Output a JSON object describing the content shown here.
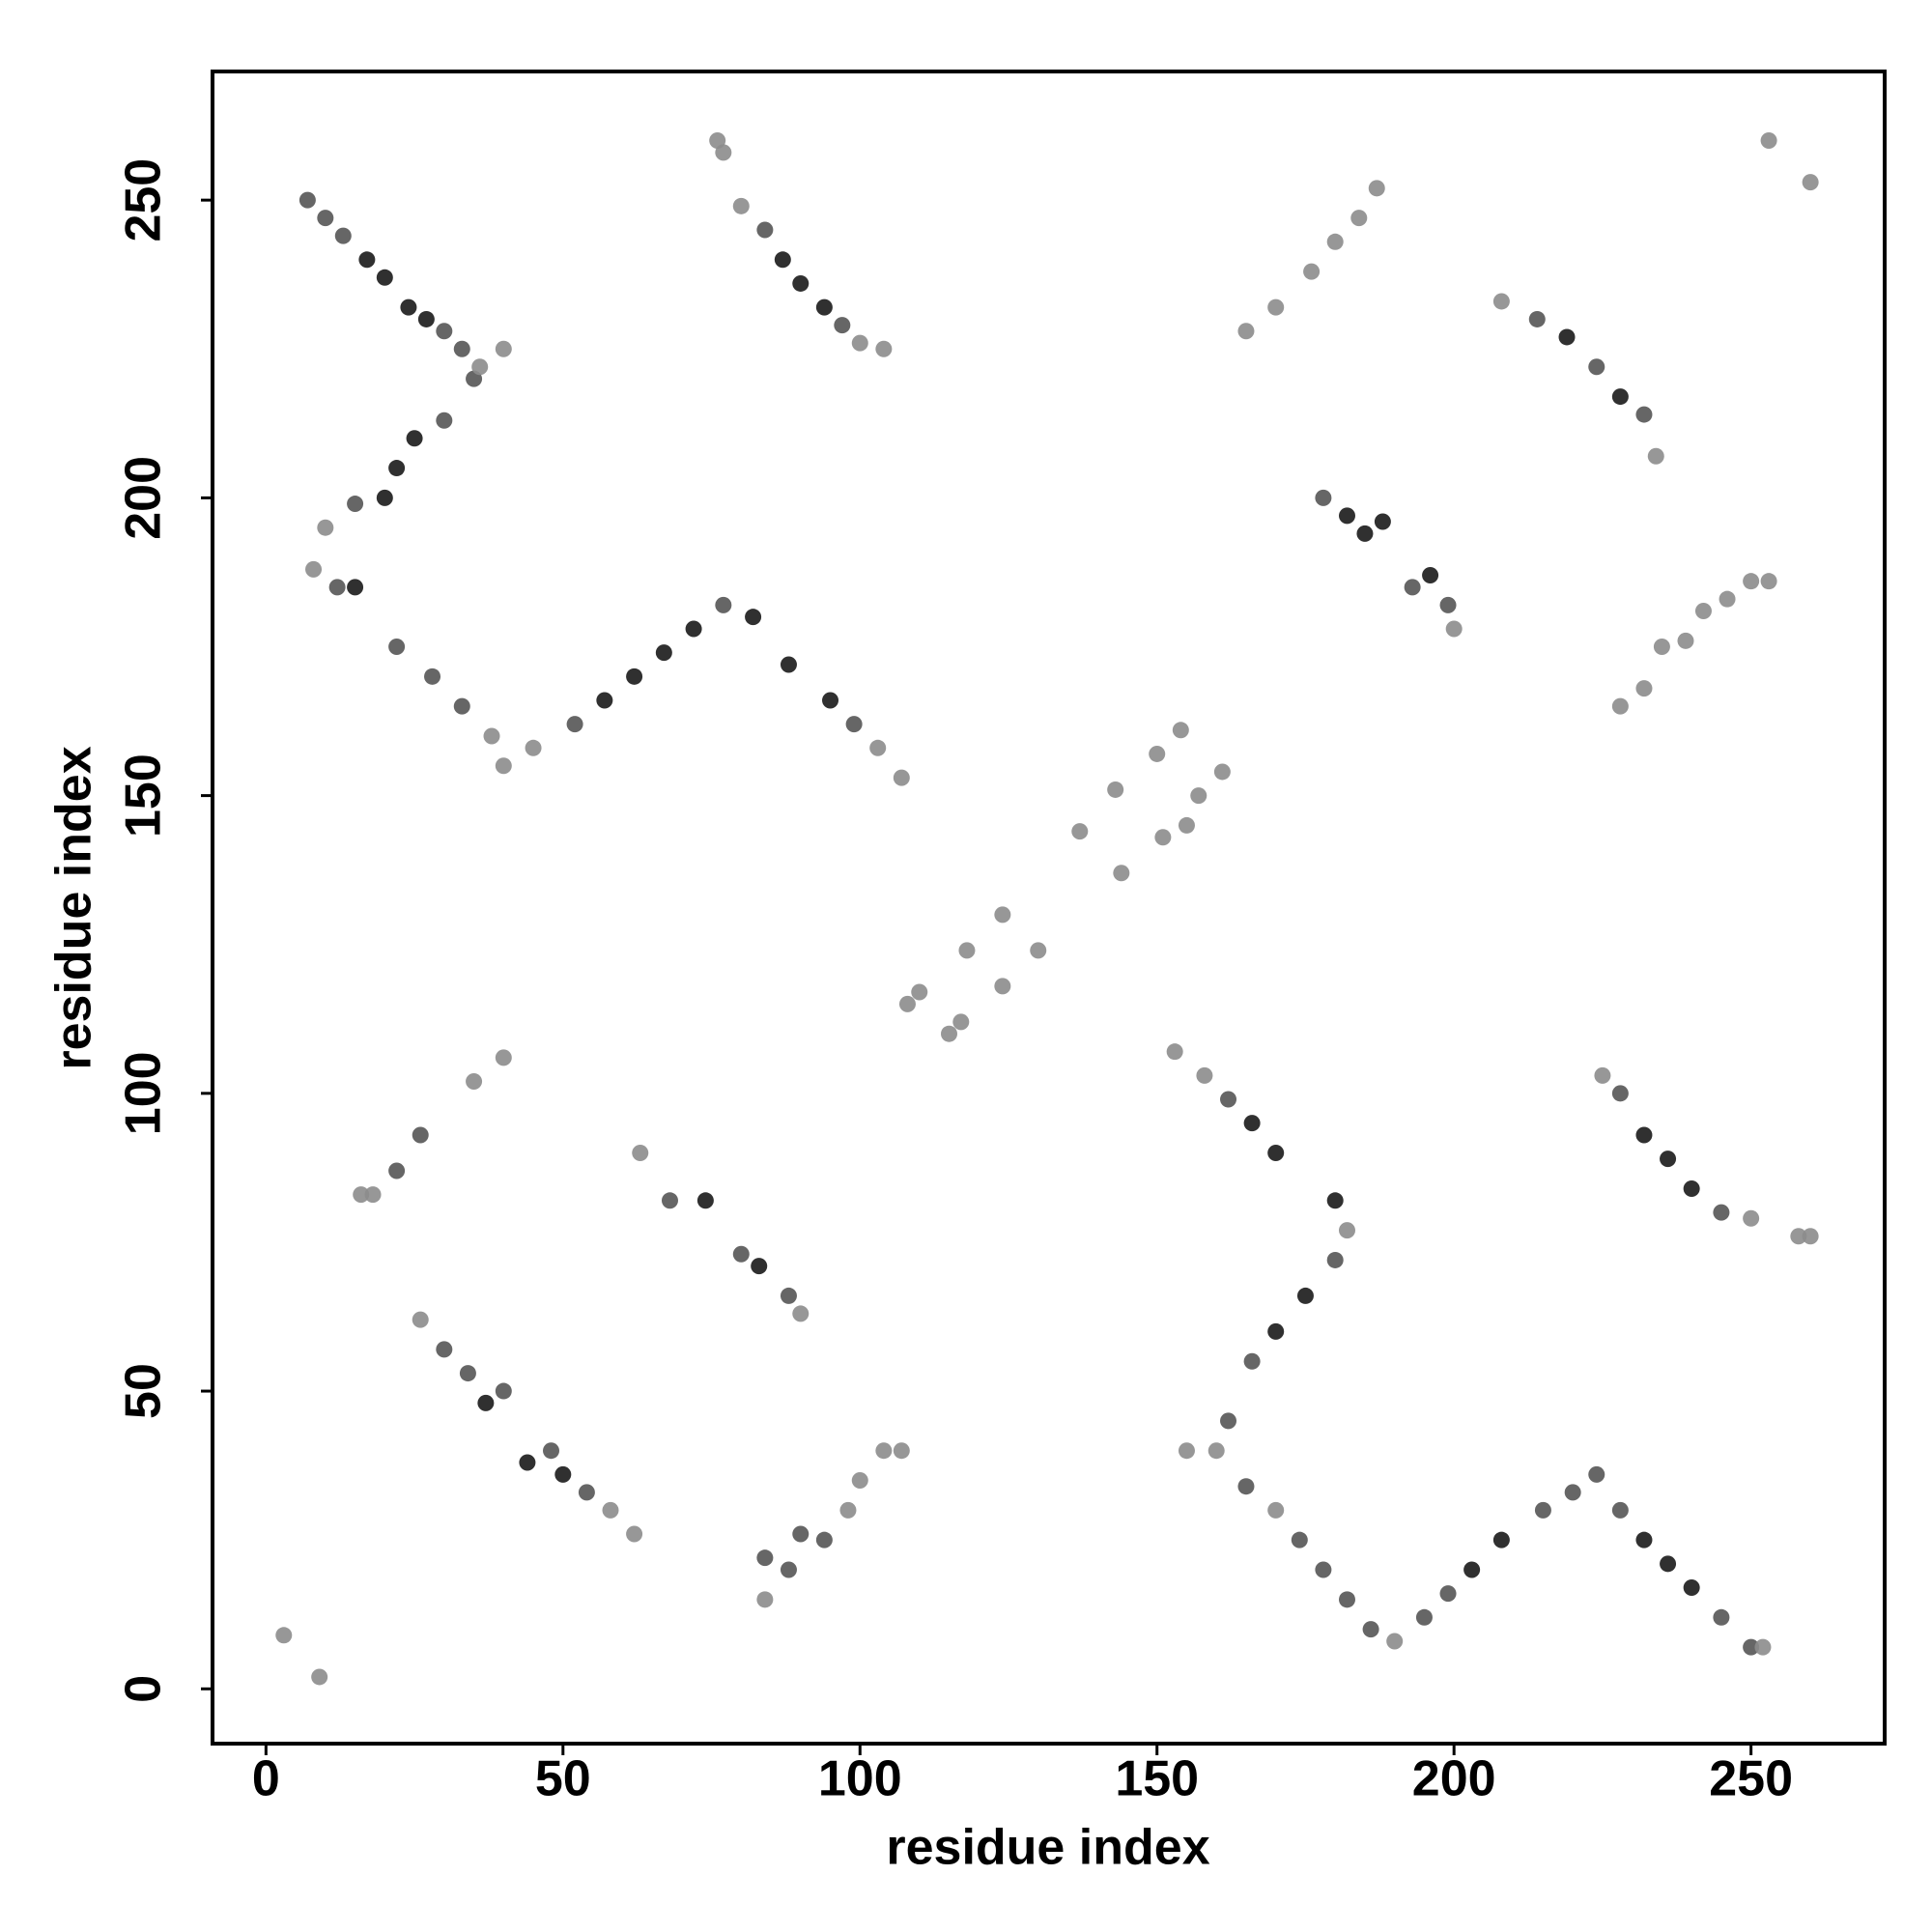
{
  "chart_data": {
    "type": "scatter",
    "xlabel": "residue index",
    "ylabel": "residue index",
    "xlim": [
      -9,
      272.5
    ],
    "ylim": [
      -9.2,
      271.6
    ],
    "xticks": [
      0,
      50,
      100,
      150,
      200,
      250
    ],
    "yticks": [
      0,
      50,
      100,
      150,
      200,
      250
    ],
    "grid": false,
    "series": [
      {
        "color": "#1a1a1a",
        "x": [
          17,
          20,
          24,
          27,
          22,
          25,
          20,
          15,
          72,
          67,
          82,
          88,
          95,
          87,
          90,
          94,
          219,
          228,
          185,
          188,
          196,
          232,
          236,
          240,
          232,
          236,
          240,
          170,
          175,
          166,
          170,
          180,
          203,
          208,
          37,
          44,
          50,
          74,
          83,
          182,
          62,
          57
        ],
        "values": [
          240,
          237,
          232,
          230,
          205,
          210,
          200,
          185,
          178,
          174,
          180,
          172,
          166,
          240,
          236,
          232,
          227,
          217,
          194,
          196,
          187,
          93,
          89,
          84,
          25,
          21,
          17,
          60,
          66,
          95,
          90,
          82,
          20,
          25,
          48,
          38,
          36,
          82,
          71,
          197,
          170,
          166
        ]
      },
      {
        "color": "#555555",
        "x": [
          7,
          10,
          13,
          30,
          33,
          35,
          30,
          15,
          12,
          22,
          28,
          33,
          52,
          77,
          99,
          84,
          97,
          214,
          224,
          232,
          178,
          193,
          199,
          228,
          245,
          245,
          250,
          228,
          224,
          220,
          215,
          199,
          195,
          186,
          182,
          178,
          174,
          165,
          162,
          166,
          180,
          162,
          22,
          26,
          30,
          34,
          40,
          48,
          54,
          88,
          94,
          90,
          68,
          80,
          88,
          84
        ],
        "values": [
          250,
          247,
          244,
          228,
          225,
          220,
          213,
          199,
          185,
          175,
          170,
          165,
          162,
          182,
          162,
          245,
          229,
          230,
          222,
          214,
          200,
          185,
          182,
          100,
          80,
          12,
          7,
          30,
          36,
          33,
          30,
          16,
          12,
          10,
          15,
          20,
          25,
          34,
          45,
          55,
          72,
          99,
          87,
          93,
          57,
          53,
          50,
          40,
          33,
          20,
          25,
          26,
          82,
          73,
          66,
          22
        ]
      },
      {
        "color": "#8c8c8c",
        "x": [
          36,
          40,
          10,
          8,
          38,
          40,
          45,
          103,
          107,
          77,
          80,
          100,
          104,
          165,
          170,
          176,
          180,
          184,
          187,
          208,
          234,
          200,
          228,
          232,
          235,
          239,
          242,
          246,
          250,
          253,
          253,
          260,
          76,
          108,
          110,
          115,
          117,
          118,
          124,
          124,
          130,
          137,
          144,
          143,
          151,
          150,
          157,
          155,
          161,
          154,
          225,
          250,
          258,
          260,
          190,
          160,
          155,
          153,
          158,
          182,
          16,
          18,
          35,
          40,
          26,
          58,
          62,
          84,
          98,
          100,
          104,
          107,
          63,
          90,
          3,
          9,
          252,
          170
        ],
        "values": [
          222,
          225,
          195,
          188,
          160,
          155,
          158,
          158,
          153,
          258,
          249,
          226,
          225,
          228,
          232,
          238,
          243,
          247,
          252,
          233,
          207,
          178,
          165,
          168,
          175,
          176,
          181,
          183,
          186,
          186,
          260,
          253,
          260,
          115,
          117,
          110,
          112,
          124,
          118,
          130,
          124,
          144,
          137,
          151,
          143,
          157,
          150,
          145,
          154,
          161,
          103,
          79,
          76,
          76,
          8,
          40,
          40,
          107,
          103,
          77,
          83,
          83,
          102,
          106,
          62,
          30,
          26,
          15,
          30,
          35,
          40,
          40,
          90,
          63,
          9,
          2,
          7,
          30
        ]
      }
    ]
  }
}
